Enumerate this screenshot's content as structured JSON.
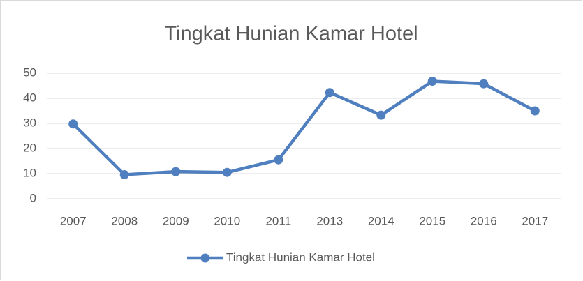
{
  "chart_data": {
    "type": "line",
    "title": "Tingkat Hunian Kamar Hotel",
    "categories": [
      "2007",
      "2008",
      "2009",
      "2010",
      "2011",
      "2013",
      "2014",
      "2015",
      "2016",
      "2017"
    ],
    "series": [
      {
        "name": "Tingkat Hunian Kamar Hotel",
        "color": "#4f7fbf",
        "values": [
          29.8,
          9.6,
          10.8,
          10.5,
          15.5,
          42.3,
          33.3,
          46.8,
          45.8,
          35
        ]
      }
    ],
    "ylim": [
      0,
      50
    ],
    "yticks": [
      0,
      10,
      20,
      30,
      40,
      50
    ],
    "grid": true,
    "legend": "bottom"
  }
}
